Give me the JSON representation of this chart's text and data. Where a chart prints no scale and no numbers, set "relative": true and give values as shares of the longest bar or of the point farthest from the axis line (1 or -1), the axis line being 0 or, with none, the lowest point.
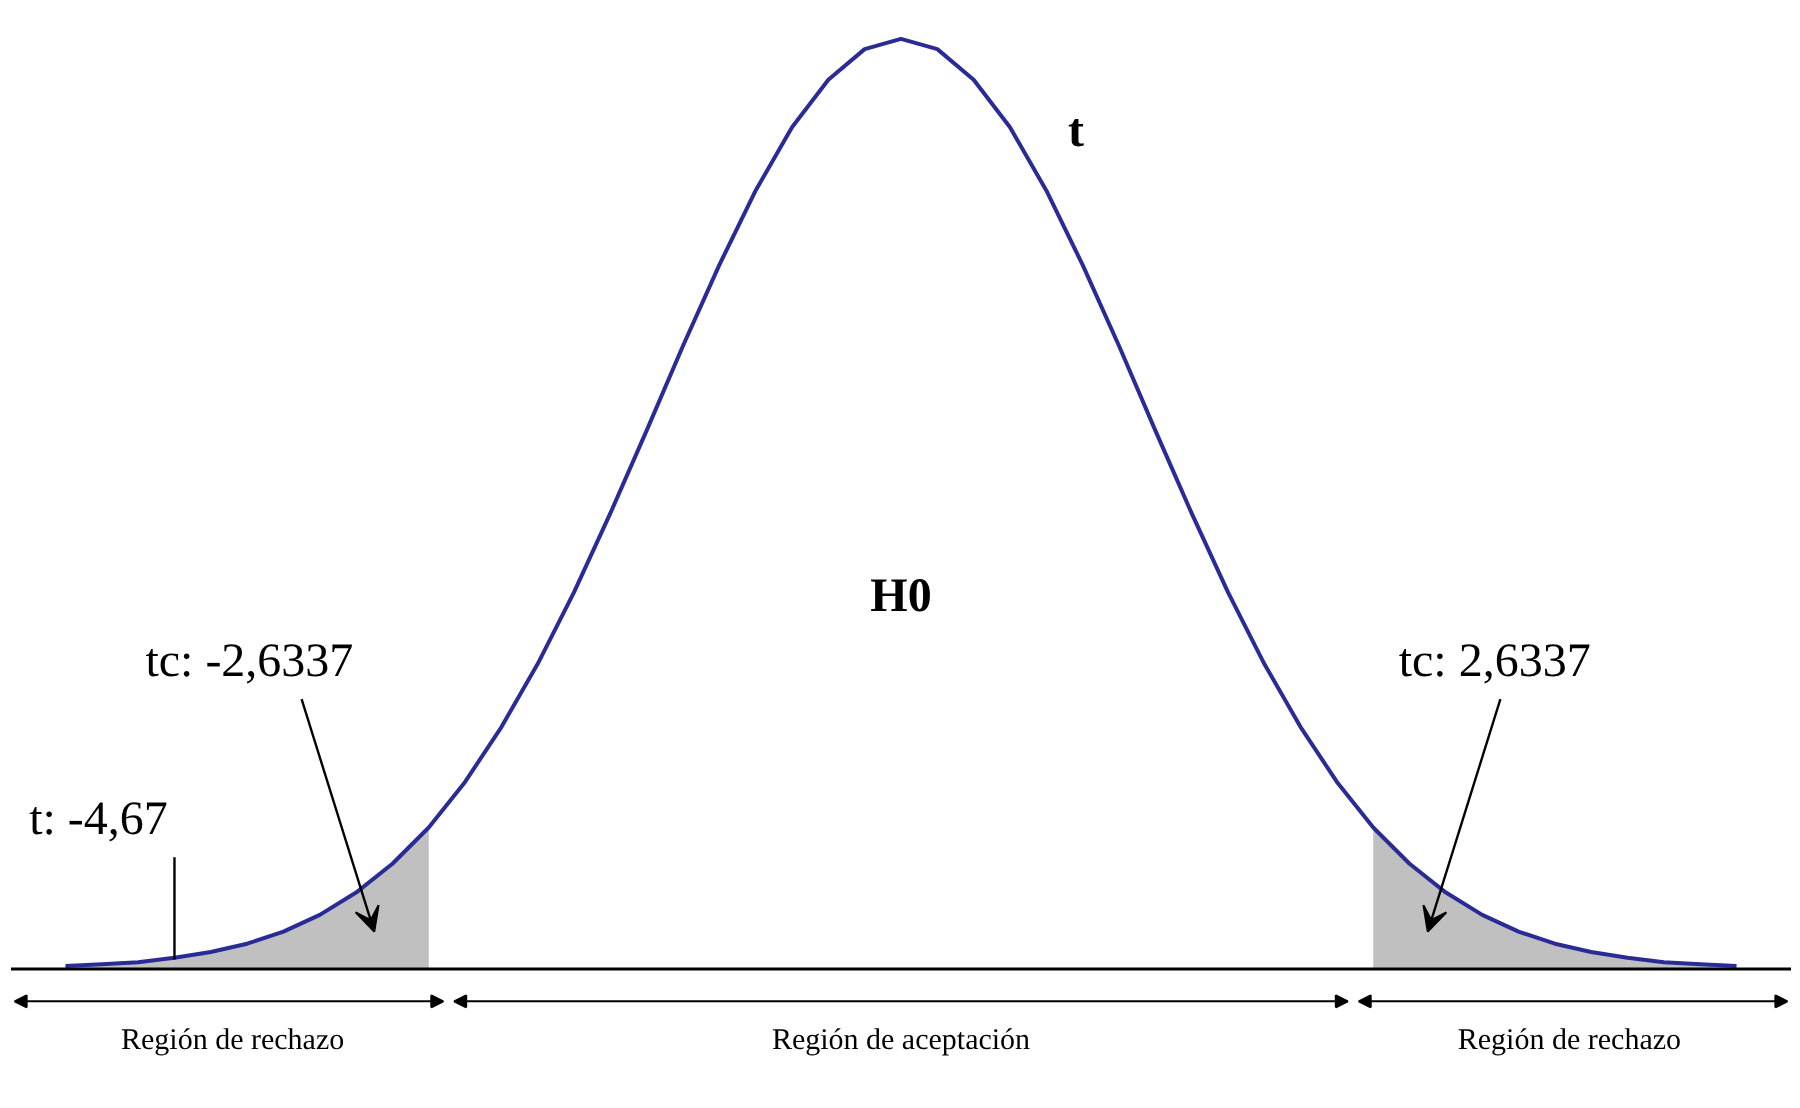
{
  "chart_data": {
    "type": "line",
    "relative": true,
    "categories": [
      null,
      null,
      null,
      null,
      null,
      null,
      null,
      null,
      null,
      null,
      null,
      null,
      null,
      null,
      null,
      null,
      null,
      null,
      null,
      null,
      null,
      null,
      null,
      null,
      null,
      null,
      null,
      null,
      null,
      null,
      null,
      null,
      null,
      null,
      null,
      null,
      null,
      null,
      null,
      null,
      null,
      null,
      null,
      null,
      null,
      null,
      null
    ],
    "series": [
      {
        "type": "area",
        "color": "#c0c0c0",
        "values": [
          0.003,
          0.005,
          0.007,
          0.012,
          0.018,
          0.027,
          0.04,
          0.058,
          0.082,
          0.113,
          0.152,
          null,
          null,
          null,
          null,
          null,
          null,
          null,
          null,
          null,
          null,
          null,
          null,
          null,
          null,
          null,
          null,
          null,
          null,
          null,
          null,
          null,
          null,
          null,
          null,
          null,
          0.152,
          0.113,
          0.082,
          0.058,
          0.04,
          0.027,
          0.018,
          0.012,
          0.007,
          0.005,
          0.003
        ]
      },
      {
        "color": "#2b2b96",
        "values": [
          0.003,
          0.005,
          0.007,
          0.012,
          0.018,
          0.027,
          0.04,
          0.058,
          0.082,
          0.113,
          0.152,
          0.201,
          0.26,
          0.328,
          0.405,
          0.49,
          0.579,
          0.67,
          0.757,
          0.837,
          0.905,
          0.956,
          0.989,
          1,
          0.989,
          0.956,
          0.905,
          0.837,
          0.757,
          0.67,
          0.579,
          0.49,
          0.405,
          0.328,
          0.26,
          0.201,
          0.152,
          0.113,
          0.082,
          0.058,
          0.04,
          0.027,
          0.018,
          0.012,
          0.007,
          0.005,
          0.003
        ]
      }
    ],
    "annotations": [
      "t",
      "H0",
      "tc: -2,6337",
      "tc: 2,6337",
      "t: -4,67",
      "Región de rechazo",
      "Región de aceptación",
      "Región de rechazo"
    ]
  }
}
